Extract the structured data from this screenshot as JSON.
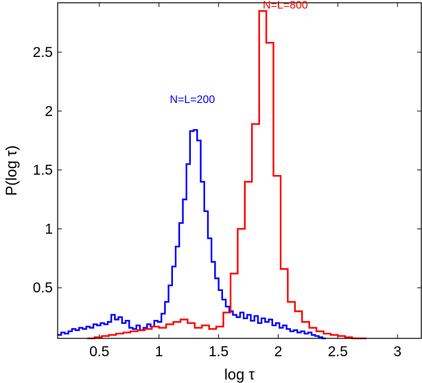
{
  "chart_data": {
    "type": "line",
    "xlabel": "log τ",
    "ylabel": "P(log τ)",
    "xlim": [
      0.15,
      3.2
    ],
    "ylim": [
      0.07,
      2.92
    ],
    "xticks": [
      0.5,
      1,
      1.5,
      2,
      2.5,
      3
    ],
    "xtick_labels": [
      "0.5",
      "1",
      "1.5",
      "2",
      "2.5",
      "3"
    ],
    "yticks": [
      0.5,
      1,
      1.5,
      2,
      2.5
    ],
    "ytick_labels": [
      "0.5",
      "1",
      "1.5",
      "2",
      "2.5"
    ],
    "grid": false,
    "legend": "none",
    "series": [
      {
        "color": "#0000ff",
        "step": 0.03,
        "x": [
          0.15,
          0.18,
          0.21,
          0.24,
          0.27,
          0.3,
          0.33,
          0.36,
          0.39,
          0.42,
          0.45,
          0.48,
          0.51,
          0.54,
          0.57,
          0.6,
          0.63,
          0.66,
          0.69,
          0.72,
          0.75,
          0.78,
          0.81,
          0.84,
          0.87,
          0.9,
          0.93,
          0.96,
          0.99,
          1.02,
          1.05,
          1.08,
          1.11,
          1.14,
          1.17,
          1.2,
          1.23,
          1.26,
          1.29,
          1.32,
          1.35,
          1.38,
          1.41,
          1.44,
          1.47,
          1.5,
          1.53,
          1.56,
          1.59,
          1.62,
          1.65,
          1.68,
          1.71,
          1.74,
          1.77,
          1.8,
          1.83,
          1.86,
          1.89,
          1.92,
          1.95,
          1.98,
          2.01,
          2.04,
          2.07,
          2.1,
          2.13,
          2.16,
          2.19,
          2.22,
          2.25,
          2.28,
          2.31,
          2.34,
          2.37
        ],
        "y": [
          0.1,
          0.12,
          0.11,
          0.13,
          0.15,
          0.14,
          0.16,
          0.15,
          0.17,
          0.16,
          0.19,
          0.18,
          0.2,
          0.19,
          0.21,
          0.27,
          0.23,
          0.25,
          0.2,
          0.22,
          0.16,
          0.15,
          0.18,
          0.14,
          0.16,
          0.19,
          0.17,
          0.22,
          0.21,
          0.28,
          0.38,
          0.52,
          0.68,
          0.85,
          1.05,
          1.25,
          1.55,
          1.83,
          1.84,
          1.75,
          1.4,
          1.15,
          0.92,
          0.72,
          0.58,
          0.48,
          0.4,
          0.34,
          0.3,
          0.27,
          0.25,
          0.29,
          0.24,
          0.27,
          0.22,
          0.26,
          0.2,
          0.24,
          0.21,
          0.23,
          0.18,
          0.2,
          0.16,
          0.18,
          0.15,
          0.13,
          0.14,
          0.12,
          0.13,
          0.11,
          0.12,
          0.1,
          0.09,
          0.08,
          0.07
        ]
      },
      {
        "color": "#ff0000",
        "step": 0.06,
        "x": [
          0.4,
          0.46,
          0.52,
          0.58,
          0.64,
          0.7,
          0.76,
          0.82,
          0.88,
          0.94,
          1.0,
          1.06,
          1.12,
          1.18,
          1.24,
          1.3,
          1.36,
          1.42,
          1.48,
          1.54,
          1.6,
          1.66,
          1.72,
          1.78,
          1.84,
          1.9,
          1.96,
          2.02,
          2.08,
          2.14,
          2.2,
          2.26,
          2.32,
          2.38,
          2.44,
          2.5,
          2.56,
          2.62,
          2.68
        ],
        "y": [
          0.07,
          0.08,
          0.09,
          0.1,
          0.11,
          0.12,
          0.13,
          0.14,
          0.15,
          0.17,
          0.16,
          0.19,
          0.21,
          0.23,
          0.2,
          0.16,
          0.18,
          0.15,
          0.17,
          0.29,
          0.62,
          1.0,
          1.4,
          1.89,
          2.85,
          2.58,
          1.45,
          0.66,
          0.38,
          0.3,
          0.21,
          0.16,
          0.13,
          0.11,
          0.1,
          0.09,
          0.08,
          0.07,
          0.07
        ]
      }
    ],
    "annotations": [
      {
        "text": "N=L=200",
        "color": "#0000ff",
        "x": 1.28,
        "y": 2.07
      },
      {
        "text": "N=L=800",
        "color": "#ff0000",
        "x": 2.06,
        "y": 2.87
      }
    ]
  }
}
